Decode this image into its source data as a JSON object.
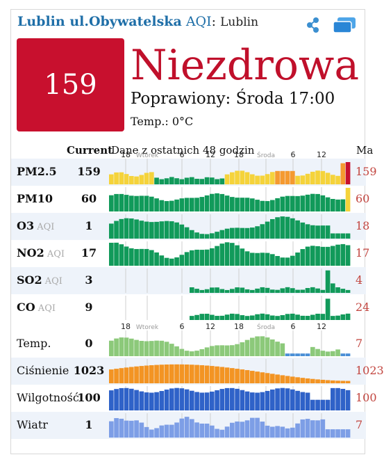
{
  "header": {
    "station": "Lublin ul.Obywatelska",
    "aqi_label": "AQI",
    "colon": ":",
    "city": "Lublin"
  },
  "summary": {
    "aqi": "159",
    "status": "Niezdrowa",
    "updated": "Poprawiony: Środa 17:00",
    "temp": "Temp.: 0°C",
    "aqi_color": "#c8102e"
  },
  "table": {
    "current_header": "Current",
    "history_header": "Dane z ostatnich 48 godzin",
    "max_header": "Ma"
  },
  "time_axis": [
    "18",
    "Wtorek",
    "6",
    "12",
    "18",
    "Środa",
    "6",
    "12"
  ],
  "rows": [
    {
      "name": "PM2.5",
      "sub": "",
      "current": "159",
      "max": "159"
    },
    {
      "name": "PM10",
      "sub": "",
      "current": "60",
      "max": "60"
    },
    {
      "name": "O3",
      "sub": "AQI",
      "current": "1",
      "max": "18"
    },
    {
      "name": "NO2",
      "sub": "AQI",
      "current": "17",
      "max": "17"
    },
    {
      "name": "SO2",
      "sub": "AQI",
      "current": "3",
      "max": "4"
    },
    {
      "name": "CO",
      "sub": "AQI",
      "current": "9",
      "max": "24"
    },
    {
      "name": "Temp.",
      "sub": "",
      "current": "0",
      "max": "7"
    },
    {
      "name": "Ciśnienie",
      "sub": "",
      "current": "1023",
      "max": "1023"
    },
    {
      "name": "Wilgotność",
      "sub": "",
      "current": "100",
      "max": "100"
    },
    {
      "name": "Wiatr",
      "sub": "",
      "current": "1",
      "max": "7"
    }
  ],
  "colors": {
    "good": "#119a5a",
    "moderate": "#f5d33a",
    "sensitive": "#f59a30",
    "unhealthy": "#c8102e",
    "temp": "#8cc97a",
    "temp_cold": "#4a8fd6",
    "pressure": "#f39423",
    "humidity": "#2f62c8",
    "wind": "#7d9ee6"
  }
}
